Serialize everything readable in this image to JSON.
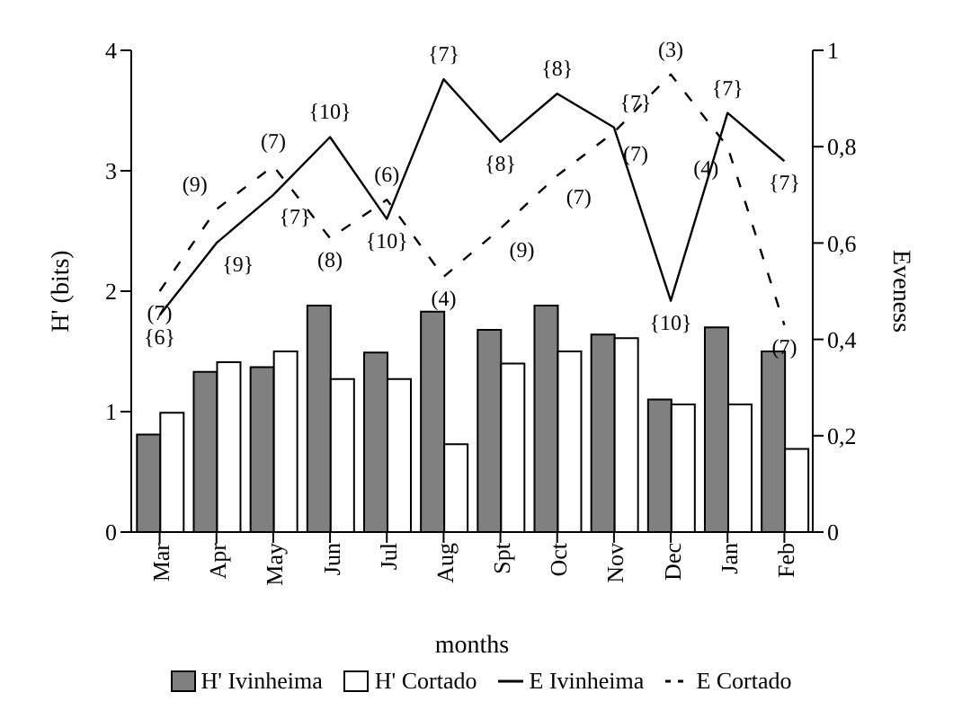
{
  "chart_data": {
    "type": "bar",
    "xlabel": "months",
    "ylabel": "H' (bits)",
    "y2label": "Eveness",
    "categories": [
      "Mar",
      "Apr",
      "May",
      "Jun",
      "Jul",
      "Aug",
      "Spt",
      "Oct",
      "Nov",
      "Dec",
      "Jan",
      "Feb"
    ],
    "series": [
      {
        "name": "H' Ivinheima",
        "color": "#808080",
        "values": [
          0.81,
          1.33,
          1.37,
          1.88,
          1.49,
          1.83,
          1.68,
          1.88,
          1.64,
          1.1,
          1.7,
          1.5
        ]
      },
      {
        "name": "H' Cortado",
        "color": "#ffffff",
        "values": [
          0.99,
          1.41,
          1.5,
          1.27,
          1.27,
          0.73,
          1.4,
          1.5,
          1.61,
          1.06,
          1.06,
          0.69
        ]
      },
      {
        "name": "E Ivinheima",
        "type": "line",
        "axis": "y2",
        "color": "#000000",
        "line_style": "solid",
        "values": [
          0.45,
          0.6,
          0.7,
          0.82,
          0.65,
          0.94,
          0.81,
          0.91,
          0.84,
          0.48,
          0.87,
          0.77
        ]
      },
      {
        "name": "E Cortado",
        "type": "line",
        "axis": "y2",
        "color": "#000000",
        "line_style": "dashed",
        "values": [
          0.5,
          0.67,
          0.76,
          0.61,
          0.69,
          0.53,
          0.63,
          0.74,
          0.83,
          0.95,
          0.8,
          0.43
        ]
      }
    ],
    "annotations": [
      {
        "text": "{6}",
        "x": "Mar",
        "y": 1.8
      },
      {
        "text": "{9}",
        "x": "Apr",
        "y": 2.4
      },
      {
        "text": "{7}",
        "x": "May",
        "y": 2.8
      },
      {
        "text": "{10}",
        "x": "Jun",
        "y": 3.28
      },
      {
        "text": "{10}",
        "x": "Jul",
        "y": 2.6
      },
      {
        "text": "{7}",
        "x": "Aug",
        "y": 3.76
      },
      {
        "text": "{8}",
        "x": "Spt",
        "y": 3.24
      },
      {
        "text": "{8}",
        "x": "Oct",
        "y": 3.64
      },
      {
        "text": "{7}",
        "x": "Nov",
        "y": 3.36
      },
      {
        "text": "{10}",
        "x": "Dec",
        "y": 1.92
      },
      {
        "text": "{7}",
        "x": "Jan",
        "y": 3.48
      },
      {
        "text": "{7}",
        "x": "Feb",
        "y": 3.08
      },
      {
        "text": "(7)",
        "x": "Mar",
        "y": 2
      },
      {
        "text": "(9)",
        "x": "Apr",
        "y": 2.68
      },
      {
        "text": "(7)",
        "x": "May",
        "y": 3.04
      },
      {
        "text": "(8)",
        "x": "Jun",
        "y": 2.44
      },
      {
        "text": "(6)",
        "x": "Jul",
        "y": 2.76
      },
      {
        "text": "(4)",
        "x": "Aug",
        "y": 2.12
      },
      {
        "text": "(9)",
        "x": "Spt",
        "y": 2.52
      },
      {
        "text": "(7)",
        "x": "Oct",
        "y": 2.96
      },
      {
        "text": "(7)",
        "x": "Nov",
        "y": 3.32
      },
      {
        "text": "(3)",
        "x": "Dec",
        "y": 3.8
      },
      {
        "text": "(4)",
        "x": "Jan",
        "y": 3.2
      },
      {
        "text": "(7)",
        "x": "Feb",
        "y": 1.72
      }
    ],
    "ylim": [
      0,
      4
    ],
    "yticks": [
      0,
      1,
      2,
      3,
      4
    ],
    "y2lim": [
      0,
      1
    ],
    "y2ticks": [
      0,
      {
        "value": 0.2,
        "label": "0,2"
      },
      {
        "value": 0.4,
        "label": "0,4"
      },
      {
        "value": 0.6,
        "label": "0,6"
      },
      {
        "value": 0.8,
        "label": "0,8"
      },
      1
    ],
    "grid": false,
    "legend": "bottom",
    "marker": "none"
  }
}
